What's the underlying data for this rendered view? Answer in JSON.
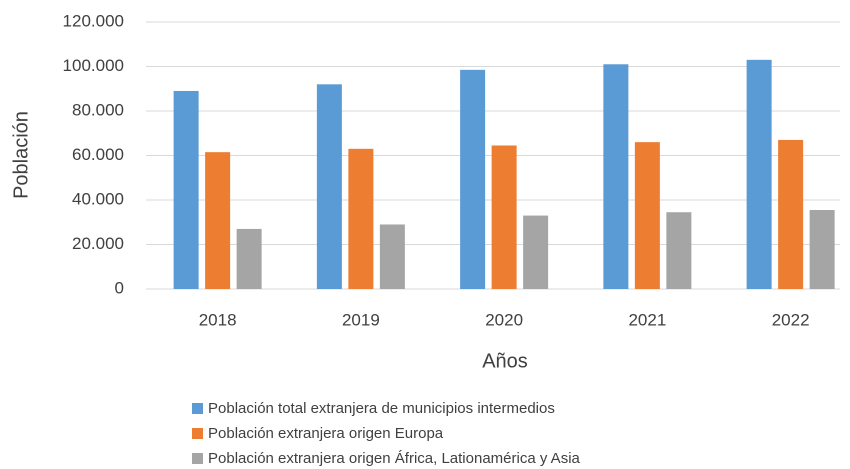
{
  "chart_data": {
    "type": "bar",
    "categories": [
      "2018",
      "2019",
      "2020",
      "2021",
      "2022"
    ],
    "series": [
      {
        "name": "Población total extranjera de municipios intermedios",
        "color": "#5b9bd5",
        "values": [
          89000,
          92000,
          98500,
          101000,
          103000
        ]
      },
      {
        "name": "Población extranjera origen Europa",
        "color": "#ed7d31",
        "values": [
          61500,
          63000,
          64500,
          66000,
          67000
        ]
      },
      {
        "name": "Población extranjera origen África, Lationamérica y Asia",
        "color": "#a5a5a5",
        "values": [
          27000,
          29000,
          33000,
          34500,
          35500
        ]
      }
    ],
    "xlabel": "Años",
    "ylabel": "Población",
    "ylim": [
      0,
      120000
    ],
    "yticks": [
      0,
      {
        "value": 20000,
        "label": "20.000"
      },
      {
        "value": 40000,
        "label": "40.000"
      },
      {
        "value": 60000,
        "label": "60.000"
      },
      {
        "value": 80000,
        "label": "80.000"
      },
      {
        "value": 100000,
        "label": "100.000"
      },
      {
        "value": 120000,
        "label": "120.000"
      }
    ],
    "grid": true,
    "legend": "bottom"
  }
}
